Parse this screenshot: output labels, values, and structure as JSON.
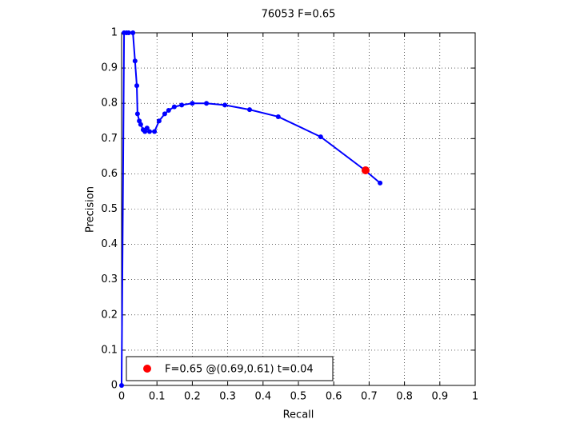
{
  "chart_data": {
    "type": "line",
    "title": "76053 F=0.65",
    "xlabel": "Recall",
    "ylabel": "Precision",
    "xlim": [
      0,
      1
    ],
    "ylim": [
      0,
      1
    ],
    "xticks": [
      0,
      0.1,
      0.2,
      0.3,
      0.4,
      0.5,
      0.6,
      0.7,
      0.8,
      0.9,
      1
    ],
    "yticks": [
      0,
      0.1,
      0.2,
      0.3,
      0.4,
      0.5,
      0.6,
      0.7,
      0.8,
      0.9,
      1
    ],
    "grid": true,
    "legend": "southwest",
    "series": [
      {
        "color": "#0000ff",
        "x": [
          0,
          0.007,
          0.014,
          0.02,
          0.032,
          0.038,
          0.043,
          0.045,
          0.05,
          0.054,
          0.061,
          0.066,
          0.072,
          0.079,
          0.093,
          0.106,
          0.122,
          0.133,
          0.149,
          0.17,
          0.2,
          0.24,
          0.292,
          0.362,
          0.443,
          0.563,
          0.686,
          0.731
        ],
        "values": [
          0,
          1,
          1,
          1,
          1,
          0.92,
          0.85,
          0.77,
          0.75,
          0.74,
          0.725,
          0.72,
          0.73,
          0.72,
          0.72,
          0.75,
          0.77,
          0.78,
          0.79,
          0.795,
          0.8,
          0.8,
          0.795,
          0.782,
          0.762,
          0.705,
          0.612,
          0.574
        ]
      },
      {
        "name": "F=0.65 @(0.69,0.61) t=0.04",
        "color": "#ff0000",
        "x": [
          0.69
        ],
        "values": [
          0.61
        ]
      }
    ]
  }
}
